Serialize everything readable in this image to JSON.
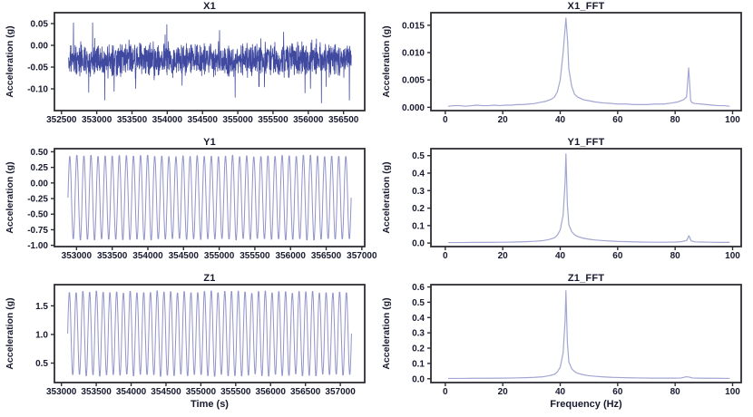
{
  "figure": {
    "background": "#ffffff",
    "rows": 3,
    "cols": 2
  },
  "style": {
    "spine_color": "#2e2d35",
    "text_color": "#181a2f",
    "time_line_color": "#4049a0",
    "sine_line_color": "#9094c9",
    "fft_line_color": "#a2a6d2"
  },
  "chart_data": [
    {
      "type": "line",
      "panel": "x1",
      "title": "X1",
      "xlabel": "",
      "ylabel": "Acceleration (g)",
      "xlim": [
        352400,
        356800
      ],
      "ylim": [
        -0.15,
        0.075
      ],
      "xticks": [
        352500,
        353000,
        353500,
        354000,
        354500,
        355000,
        355500,
        356000,
        356500
      ],
      "xtick_labels": [
        "352500",
        "353000",
        "353500",
        "354000",
        "354500",
        "355000",
        "355500",
        "356000",
        "356500"
      ],
      "yticks": [
        0.05,
        0.0,
        -0.05,
        -0.1
      ],
      "ytick_labels": [
        "0.05",
        "0.00",
        "-0.05",
        "-0.10"
      ],
      "line_color": "#4049a0",
      "line_width": 0.8,
      "signal": {
        "kind": "noise",
        "seed": 11,
        "n": 1600,
        "x_start": 352600,
        "x_end": 356610,
        "mean": -0.033,
        "base_amp": 0.05,
        "env_freq": 0.12,
        "spike_down": 0.105,
        "spike_up": 0.09,
        "observed_band": [
          -0.14,
          0.065
        ]
      }
    },
    {
      "type": "line",
      "panel": "x1_fft",
      "title": "X1_FFT",
      "xlabel": "",
      "ylabel": "Acceleration (g)",
      "xlim": [
        -5,
        103
      ],
      "ylim": [
        -0.0006,
        0.0173
      ],
      "xticks": [
        0,
        20,
        40,
        60,
        80,
        100
      ],
      "xtick_labels": [
        "0",
        "20",
        "40",
        "60",
        "80",
        "100"
      ],
      "yticks": [
        0.015,
        0.01,
        0.005,
        0.0
      ],
      "ytick_labels": [
        "0.015",
        "0.010",
        "0.005",
        "0.000"
      ],
      "line_color": "#a2a6d2",
      "line_width": 1.2,
      "peaks": [
        {
          "freq_hz": 42,
          "amp": 0.0163
        },
        {
          "freq_hz": 85,
          "amp": 0.0072
        }
      ],
      "points": [
        [
          1,
          0.0002
        ],
        [
          3,
          0.0003
        ],
        [
          5,
          0.0003
        ],
        [
          7,
          0.0002
        ],
        [
          9,
          0.0003
        ],
        [
          11,
          0.0004
        ],
        [
          13,
          0.0003
        ],
        [
          15,
          0.0003
        ],
        [
          17,
          0.0004
        ],
        [
          19,
          0.0003
        ],
        [
          21,
          0.0004
        ],
        [
          23,
          0.0004
        ],
        [
          25,
          0.0005
        ],
        [
          27,
          0.0005
        ],
        [
          29,
          0.0006
        ],
        [
          31,
          0.0007
        ],
        [
          33,
          0.0009
        ],
        [
          35,
          0.0011
        ],
        [
          36,
          0.0013
        ],
        [
          37,
          0.0015
        ],
        [
          38,
          0.0019
        ],
        [
          39,
          0.0028
        ],
        [
          40,
          0.005
        ],
        [
          41,
          0.01
        ],
        [
          42,
          0.0163
        ],
        [
          42.6,
          0.012
        ],
        [
          43,
          0.007
        ],
        [
          44,
          0.0038
        ],
        [
          45,
          0.0024
        ],
        [
          46,
          0.0019
        ],
        [
          48,
          0.0014
        ],
        [
          50,
          0.0012
        ],
        [
          52,
          0.001
        ],
        [
          55,
          0.0008
        ],
        [
          58,
          0.0007
        ],
        [
          60,
          0.0006
        ],
        [
          63,
          0.0006
        ],
        [
          66,
          0.0005
        ],
        [
          70,
          0.0005
        ],
        [
          73,
          0.0006
        ],
        [
          76,
          0.0006
        ],
        [
          79,
          0.0008
        ],
        [
          81,
          0.001
        ],
        [
          83,
          0.0014
        ],
        [
          84,
          0.0019
        ],
        [
          84.7,
          0.0072
        ],
        [
          85.4,
          0.0012
        ],
        [
          86,
          0.0008
        ],
        [
          87,
          0.0007
        ],
        [
          89,
          0.0006
        ],
        [
          91,
          0.0005
        ],
        [
          93,
          0.0004
        ],
        [
          95,
          0.0003
        ],
        [
          97,
          0.0003
        ],
        [
          99,
          0.0002
        ]
      ]
    },
    {
      "type": "line",
      "panel": "y1",
      "title": "Y1",
      "xlabel": "",
      "ylabel": "Acceleration (g)",
      "xlim": [
        352690,
        357040
      ],
      "ylim": [
        -1.02,
        0.55
      ],
      "xticks": [
        353000,
        353500,
        354000,
        354500,
        355000,
        355500,
        356000,
        356500,
        357000
      ],
      "xtick_labels": [
        "353000",
        "353500",
        "354000",
        "354500",
        "355000",
        "355500",
        "356000",
        "356500",
        "357000"
      ],
      "yticks": [
        0.5,
        0.25,
        0.0,
        -0.25,
        -0.5,
        -0.75,
        -1.0
      ],
      "ytick_labels": [
        "0.50",
        "0.25",
        "0.00",
        "-0.25",
        "-0.50",
        "-0.75",
        "-1.00"
      ],
      "line_color": "#9094c9",
      "line_width": 1.0,
      "signal": {
        "kind": "sine",
        "seed": 3,
        "cycles": 40,
        "samples_per_cycle": 14,
        "x_start": 352880,
        "x_end": 356850,
        "y_max": 0.46,
        "y_min": -0.93,
        "peak_jitter": 0.04
      }
    },
    {
      "type": "line",
      "panel": "y1_fft",
      "title": "Y1_FFT",
      "xlabel": "",
      "ylabel": "Acceleration (g)",
      "xlim": [
        -5,
        103
      ],
      "ylim": [
        -0.02,
        0.54
      ],
      "xticks": [
        0,
        20,
        40,
        60,
        80,
        100
      ],
      "xtick_labels": [
        "0",
        "20",
        "40",
        "60",
        "80",
        "100"
      ],
      "yticks": [
        0.5,
        0.4,
        0.3,
        0.2,
        0.1,
        0.0
      ],
      "ytick_labels": [
        "0.5",
        "0.4",
        "0.3",
        "0.2",
        "0.1",
        "0.0"
      ],
      "line_color": "#a2a6d2",
      "line_width": 1.2,
      "peaks": [
        {
          "freq_hz": 42,
          "amp": 0.51
        },
        {
          "freq_hz": 85,
          "amp": 0.042
        }
      ],
      "points": [
        [
          1,
          0.003
        ],
        [
          5,
          0.003
        ],
        [
          10,
          0.004
        ],
        [
          15,
          0.004
        ],
        [
          20,
          0.005
        ],
        [
          24,
          0.006
        ],
        [
          28,
          0.008
        ],
        [
          31,
          0.01
        ],
        [
          34,
          0.014
        ],
        [
          36,
          0.02
        ],
        [
          38,
          0.03
        ],
        [
          39,
          0.045
        ],
        [
          40,
          0.075
        ],
        [
          41,
          0.16
        ],
        [
          41.7,
          0.35
        ],
        [
          42,
          0.51
        ],
        [
          42.5,
          0.22
        ],
        [
          43,
          0.105
        ],
        [
          44,
          0.065
        ],
        [
          45,
          0.048
        ],
        [
          46,
          0.038
        ],
        [
          48,
          0.028
        ],
        [
          50,
          0.022
        ],
        [
          52,
          0.018
        ],
        [
          55,
          0.014
        ],
        [
          58,
          0.011
        ],
        [
          60,
          0.009
        ],
        [
          64,
          0.008
        ],
        [
          68,
          0.006
        ],
        [
          72,
          0.005
        ],
        [
          76,
          0.005
        ],
        [
          80,
          0.006
        ],
        [
          82,
          0.008
        ],
        [
          84,
          0.014
        ],
        [
          84.8,
          0.042
        ],
        [
          85.6,
          0.012
        ],
        [
          87,
          0.007
        ],
        [
          89,
          0.006
        ],
        [
          92,
          0.005
        ],
        [
          95,
          0.004
        ],
        [
          99,
          0.004
        ]
      ]
    },
    {
      "type": "line",
      "panel": "z1",
      "title": "Z1",
      "xlabel": "Time (s)",
      "ylabel": "Acceleration (g)",
      "xlim": [
        352900,
        357350
      ],
      "ylim": [
        0.16,
        1.87
      ],
      "xticks": [
        353000,
        353500,
        354000,
        354500,
        355000,
        355500,
        356000,
        356500,
        357000
      ],
      "xtick_labels": [
        "353000",
        "353500",
        "354000",
        "354500",
        "355000",
        "355500",
        "356000",
        "356500",
        "357000"
      ],
      "yticks": [
        1.5,
        1.0,
        0.5
      ],
      "ytick_labels": [
        "1.5",
        "1.0",
        "0.5"
      ],
      "line_color": "#9094c9",
      "line_width": 1.0,
      "signal": {
        "kind": "sine",
        "seed": 5,
        "cycles": 42,
        "samples_per_cycle": 14,
        "x_start": 353090,
        "x_end": 357160,
        "y_max": 1.78,
        "y_min": 0.25,
        "peak_jitter": 0.06
      }
    },
    {
      "type": "line",
      "panel": "z1_fft",
      "title": "Z1_FFT",
      "xlabel": "Frequency (Hz)",
      "ylabel": "Acceleration (g)",
      "xlim": [
        -5,
        103
      ],
      "ylim": [
        -0.025,
        0.615
      ],
      "xticks": [
        0,
        20,
        40,
        60,
        80,
        100
      ],
      "xtick_labels": [
        "0",
        "20",
        "40",
        "60",
        "80",
        "100"
      ],
      "yticks": [
        0.6,
        0.5,
        0.4,
        0.3,
        0.2,
        0.1,
        0.0
      ],
      "ytick_labels": [
        "0.6",
        "0.5",
        "0.4",
        "0.3",
        "0.2",
        "0.1",
        "0.0"
      ],
      "line_color": "#a2a6d2",
      "line_width": 1.2,
      "peaks": [
        {
          "freq_hz": 42,
          "amp": 0.575
        },
        {
          "freq_hz": 84,
          "amp": 0.013
        }
      ],
      "points": [
        [
          1,
          0.002
        ],
        [
          5,
          0.002
        ],
        [
          10,
          0.003
        ],
        [
          15,
          0.003
        ],
        [
          20,
          0.004
        ],
        [
          24,
          0.005
        ],
        [
          28,
          0.007
        ],
        [
          31,
          0.009
        ],
        [
          34,
          0.013
        ],
        [
          36,
          0.019
        ],
        [
          38,
          0.029
        ],
        [
          39,
          0.044
        ],
        [
          40,
          0.075
        ],
        [
          41,
          0.17
        ],
        [
          41.7,
          0.38
        ],
        [
          42,
          0.575
        ],
        [
          42.5,
          0.24
        ],
        [
          43,
          0.11
        ],
        [
          44,
          0.065
        ],
        [
          45,
          0.047
        ],
        [
          46,
          0.036
        ],
        [
          48,
          0.026
        ],
        [
          50,
          0.02
        ],
        [
          52,
          0.016
        ],
        [
          55,
          0.012
        ],
        [
          58,
          0.009
        ],
        [
          60,
          0.008
        ],
        [
          64,
          0.006
        ],
        [
          68,
          0.005
        ],
        [
          72,
          0.004
        ],
        [
          76,
          0.004
        ],
        [
          80,
          0.004
        ],
        [
          82,
          0.005
        ],
        [
          84,
          0.013
        ],
        [
          85,
          0.01
        ],
        [
          86,
          0.005
        ],
        [
          88,
          0.004
        ],
        [
          91,
          0.003
        ],
        [
          94,
          0.003
        ],
        [
          99,
          0.002
        ]
      ]
    }
  ]
}
